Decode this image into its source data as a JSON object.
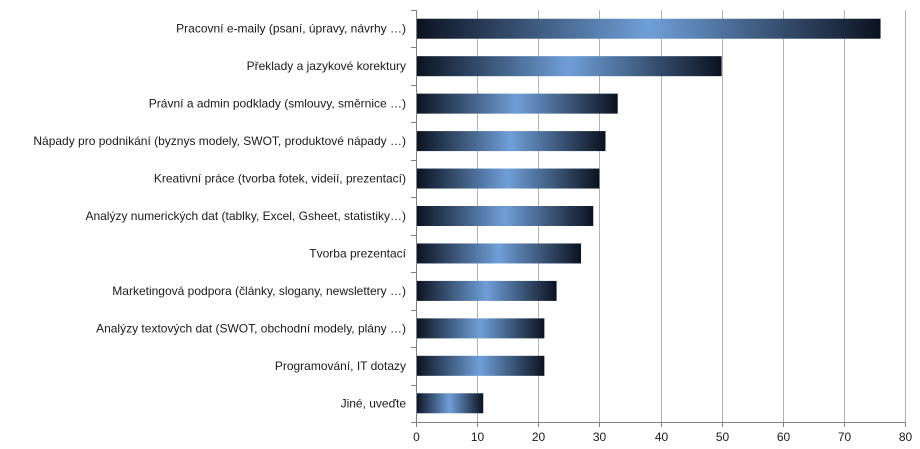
{
  "chart_data": {
    "type": "bar",
    "orientation": "horizontal",
    "categories": [
      "Pracovní e-maily (psaní, úpravy, návrhy …)",
      "Překlady a jazykové korektury",
      "Právní a admin podklady (smlouvy, směrnice …)",
      "Nápady pro podnikání (byznys modely, SWOT, produktové nápady …)",
      "Kreativní práce (tvorba fotek, videií, prezentací)",
      "Analýzy numerických dat (tablky, Excel, Gsheet, statistiky…)",
      "Tvorba prezentací",
      "Marketingová podpora (články, slogany, newslettery …)",
      "Analýzy textových dat (SWOT, obchodní modely, plány …)",
      "Programování, IT dotazy",
      "Jiné, uveďte"
    ],
    "values": [
      76,
      50,
      33,
      31,
      30,
      29,
      27,
      23,
      21,
      21,
      11
    ],
    "xlim": [
      0,
      80
    ],
    "xticks": [
      0,
      10,
      20,
      30,
      40,
      50,
      60,
      70,
      80
    ],
    "grid": true,
    "title": "",
    "xlabel": "",
    "ylabel": "",
    "colors": {
      "bar_edge": "#0b1220",
      "bar_center": "#6f9fd8",
      "grid": "#b3b3b3",
      "axis": "#808080",
      "text": "#1a1a1a"
    }
  }
}
